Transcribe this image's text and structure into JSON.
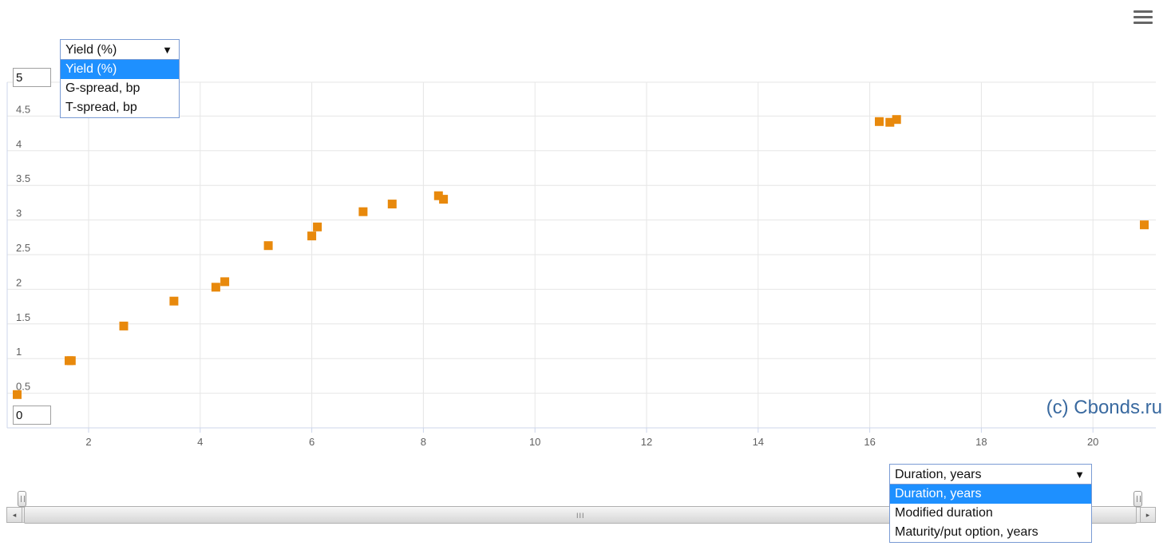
{
  "chart_data": {
    "type": "scatter",
    "title": "",
    "xlabel": "",
    "ylabel": "",
    "xlim": [
      0.7,
      21.0
    ],
    "ylim": [
      0,
      5
    ],
    "x_ticks": [
      2,
      4,
      6,
      8,
      10,
      12,
      14,
      16,
      18,
      20
    ],
    "y_ticks": [
      0.5,
      1,
      1.5,
      2,
      2.5,
      3,
      3.5,
      4,
      4.5
    ],
    "grid": true,
    "marker_color": "#e8890c",
    "series": [
      {
        "points": [
          [
            0.72,
            0.48
          ],
          [
            1.65,
            0.97
          ],
          [
            1.69,
            0.97
          ],
          [
            2.63,
            1.47
          ],
          [
            3.53,
            1.83
          ],
          [
            4.28,
            2.03
          ],
          [
            4.44,
            2.11
          ],
          [
            5.22,
            2.63
          ],
          [
            6.0,
            2.77
          ],
          [
            6.1,
            2.9
          ],
          [
            6.92,
            3.12
          ],
          [
            7.44,
            3.23
          ],
          [
            8.27,
            3.35
          ],
          [
            8.36,
            3.3
          ],
          [
            16.17,
            4.42
          ],
          [
            16.36,
            4.41
          ],
          [
            16.48,
            4.45
          ],
          [
            20.92,
            2.93
          ]
        ]
      }
    ]
  },
  "y_selector": {
    "selected": "Yield (%)",
    "options": [
      "Yield (%)",
      "G-spread, bp",
      "T-spread, bp"
    ]
  },
  "x_selector": {
    "selected": "Duration, years",
    "options": [
      "Duration, years",
      "Modified duration",
      "Maturity/put option, years"
    ]
  },
  "y_axis_inputs": {
    "max": "5",
    "min": "0"
  },
  "watermark": "(c) Cbonds.ru",
  "icons": {
    "menu": "hamburger-menu-icon",
    "dropdown_arrow": "triangle-down-icon",
    "scroll_left": "arrow-left-icon",
    "scroll_right": "arrow-right-icon",
    "scroll_grip": "grip-icon"
  }
}
